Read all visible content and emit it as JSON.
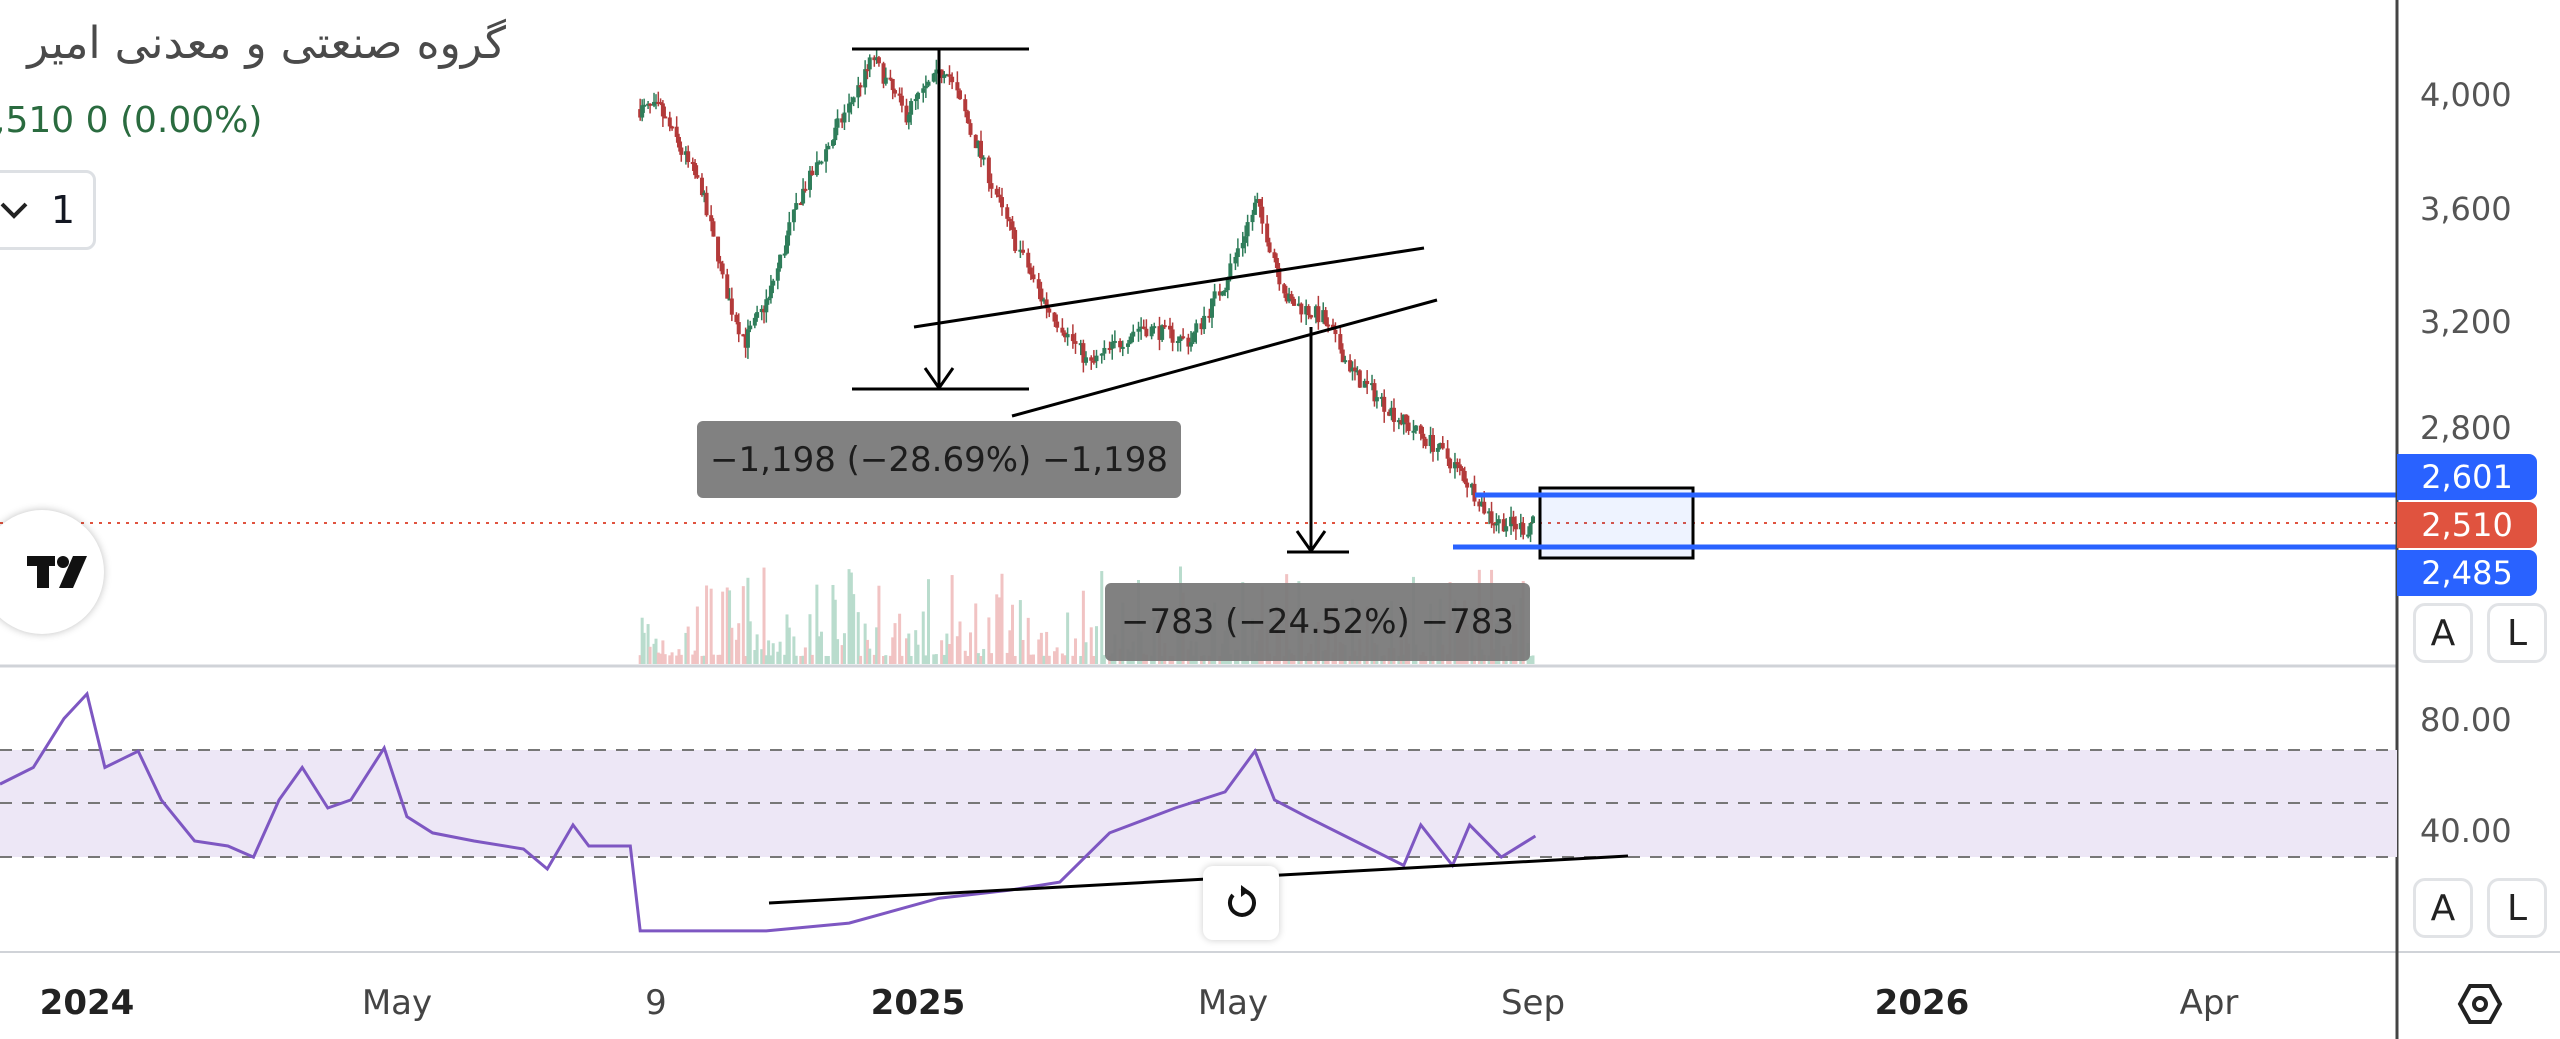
{
  "header": {
    "symbol_title": "گروه صنعتی و معدنی امیر",
    "quote": ",510  0 (0.00%)",
    "interval": "1",
    "interval_icon": "chevron-down-icon"
  },
  "price_axis": {
    "ticks": [
      "4,000",
      "3,600",
      "3,200",
      "2,800"
    ],
    "labels": [
      {
        "text": "2,601",
        "color": "#2962ff"
      },
      {
        "text": "2,510",
        "color": "#e0533f"
      },
      {
        "text": "2,485",
        "color": "#2962ff"
      }
    ],
    "auto_button": "A",
    "log_button": "L"
  },
  "rsi_axis": {
    "ticks": [
      "80.00",
      "40.00"
    ],
    "auto_button": "A",
    "log_button": "L"
  },
  "time_axis": {
    "labels": [
      {
        "text": "2024",
        "bold": true
      },
      {
        "text": "May",
        "bold": false
      },
      {
        "text": "9",
        "bold": false
      },
      {
        "text": "2025",
        "bold": true
      },
      {
        "text": "May",
        "bold": false
      },
      {
        "text": "Sep",
        "bold": false
      },
      {
        "text": "2026",
        "bold": true
      },
      {
        "text": "Apr",
        "bold": false
      }
    ]
  },
  "drawings": {
    "measure_1": "−1,198 (−28.69%) −1,198",
    "measure_2": "−783 (−24.52%) −783"
  },
  "colors": {
    "up": "#2f7d5a",
    "down": "#b33a3a",
    "rsi_line": "#7e57c2",
    "rsi_band": "#ede7f6",
    "level_line": "#2962ff",
    "last_price_line": "#e0533f"
  },
  "chart_data": {
    "type": "candlestick",
    "last_price": 2510,
    "levels": [
      2601,
      2485
    ],
    "price_keypoints": [
      [
        "2024-09-01",
        3950
      ],
      [
        "2024-09-11",
        3950
      ],
      [
        "2024-09-29",
        3670
      ],
      [
        "2024-10-10",
        3300
      ],
      [
        "2024-10-18",
        3125
      ],
      [
        "2024-10-28",
        3270
      ],
      [
        "2024-11-11",
        3640
      ],
      [
        "2024-11-25",
        3845
      ],
      [
        "2024-12-13",
        4130
      ],
      [
        "2024-12-27",
        3930
      ],
      [
        "2025-01-12",
        4100
      ],
      [
        "2025-01-24",
        3815
      ],
      [
        "2025-02-05",
        3530
      ],
      [
        "2025-02-18",
        3270
      ],
      [
        "2025-03-08",
        3040
      ],
      [
        "2025-03-27",
        3180
      ],
      [
        "2025-04-15",
        3125
      ],
      [
        "2025-04-28",
        3330
      ],
      [
        "2025-05-11",
        3615
      ],
      [
        "2025-05-24",
        3270
      ],
      [
        "2025-06-07",
        3210
      ],
      [
        "2025-06-20",
        3010
      ],
      [
        "2025-07-10",
        2840
      ],
      [
        "2025-07-24",
        2750
      ],
      [
        "2025-08-03",
        2660
      ],
      [
        "2025-08-16",
        2490
      ],
      [
        "2025-08-30",
        2460
      ],
      [
        "2025-09-02",
        2510
      ]
    ],
    "rsi": {
      "bands": [
        70,
        50,
        30
      ],
      "values": [
        [
          "2023-11-28",
          56.9
        ],
        [
          "2023-12-11",
          62.9
        ],
        [
          "2023-12-23",
          80.5
        ],
        [
          "2024-01-01",
          89.4
        ],
        [
          "2024-01-08",
          62.9
        ],
        [
          "2024-01-21",
          68.8
        ],
        [
          "2024-01-30",
          51.2
        ],
        [
          "2024-02-12",
          36.4
        ],
        [
          "2024-02-25",
          34.6
        ],
        [
          "2024-03-06",
          30.6
        ],
        [
          "2024-03-16",
          51.2
        ],
        [
          "2024-03-25",
          62.9
        ],
        [
          "2024-04-04",
          48.3
        ],
        [
          "2024-04-13",
          51.2
        ],
        [
          "2024-04-26",
          69.9
        ],
        [
          "2024-05-06",
          45.2
        ],
        [
          "2024-05-19",
          39.3
        ],
        [
          "2024-06-09",
          36.4
        ],
        [
          "2024-07-04",
          33.5
        ],
        [
          "2024-07-16",
          26.3
        ],
        [
          "2024-07-29",
          42.2
        ],
        [
          "2024-08-06",
          34.6
        ],
        [
          "2024-08-27",
          34.6
        ],
        [
          "2024-09-01",
          4
        ],
        [
          "2024-10-27",
          4
        ],
        [
          "2024-12-02",
          6.8
        ],
        [
          "2025-01-09",
          15.8
        ],
        [
          "2025-02-05",
          18.7
        ],
        [
          "2025-02-24",
          21.6
        ],
        [
          "2025-03-15",
          39.3
        ],
        [
          "2025-04-09",
          48.3
        ],
        [
          "2025-04-28",
          54.1
        ],
        [
          "2025-05-10",
          68.8
        ],
        [
          "2025-05-18",
          51.2
        ],
        [
          "2025-05-31",
          45.2
        ],
        [
          "2025-06-20",
          36.4
        ],
        [
          "2025-07-10",
          27.6
        ],
        [
          "2025-07-17",
          42.2
        ],
        [
          "2025-07-30",
          27.6
        ],
        [
          "2025-08-06",
          42.2
        ],
        [
          "2025-08-19",
          30.6
        ],
        [
          "2025-09-02",
          38.2
        ]
      ]
    }
  }
}
